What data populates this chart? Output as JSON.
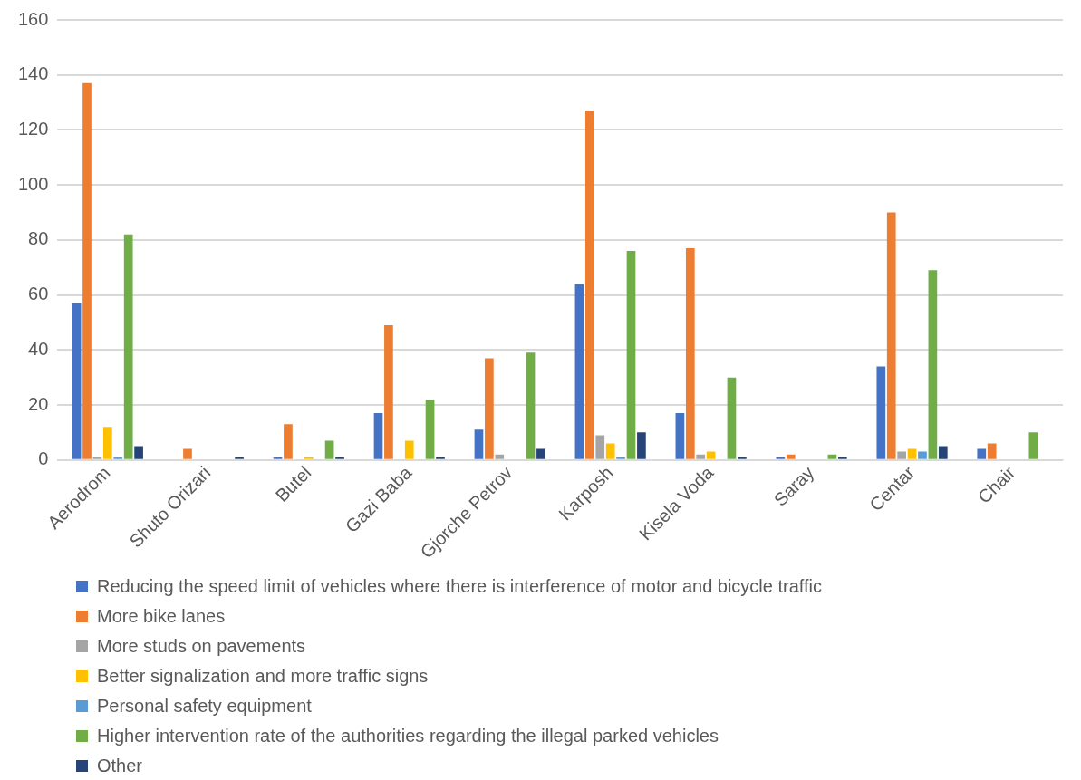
{
  "chart_data": {
    "type": "bar",
    "categories": [
      "Aerodrom",
      "Shuto Orizari",
      "Butel",
      "Gazi Baba",
      "Gjorche Petrov",
      "Karposh",
      "Kisela Voda",
      "Saray",
      "Centar",
      "Chair"
    ],
    "series": [
      {
        "name": "Reducing the speed limit of vehicles where there is interference of motor and bicycle traffic",
        "color": "#4472c4",
        "values": [
          57,
          0,
          1,
          17,
          11,
          64,
          17,
          1,
          34,
          4
        ]
      },
      {
        "name": "More bike lanes",
        "color": "#ed7d31",
        "values": [
          137,
          4,
          13,
          49,
          37,
          127,
          77,
          2,
          90,
          6
        ]
      },
      {
        "name": "More studs on pavements",
        "color": "#a5a5a5",
        "values": [
          1,
          0,
          0,
          0,
          2,
          9,
          2,
          0,
          3,
          0
        ]
      },
      {
        "name": "Better signalization and more traffic signs",
        "color": "#ffc000",
        "values": [
          12,
          0,
          1,
          7,
          0,
          6,
          3,
          0,
          4,
          0
        ]
      },
      {
        "name": "Personal safety equipment",
        "color": "#5b9bd5",
        "values": [
          1,
          0,
          0,
          0,
          0,
          1,
          0,
          0,
          3,
          0
        ]
      },
      {
        "name": "Higher intervention rate of the authorities regarding the illegal parked vehicles",
        "color": "#70ad47",
        "values": [
          82,
          0,
          7,
          22,
          39,
          76,
          30,
          2,
          69,
          10
        ]
      },
      {
        "name": "Other",
        "color": "#264478",
        "values": [
          5,
          1,
          1,
          1,
          4,
          10,
          1,
          1,
          5,
          0
        ]
      }
    ],
    "ylim": [
      0,
      160
    ],
    "yticks": [
      0,
      20,
      40,
      60,
      80,
      100,
      120,
      140,
      160
    ],
    "grid": "y",
    "legend": "bottom"
  }
}
